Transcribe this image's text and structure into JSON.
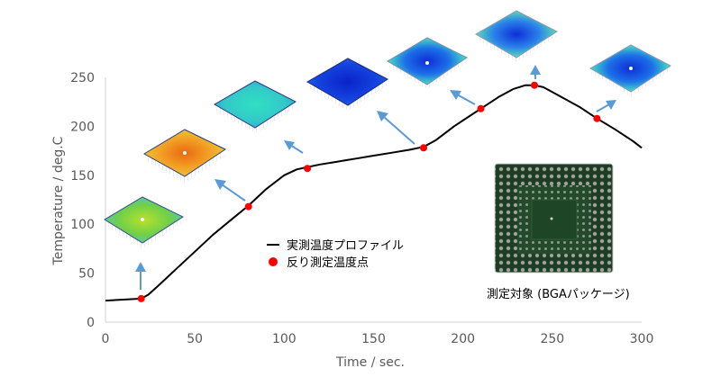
{
  "chart_data": {
    "type": "line",
    "xlabel": "Time / sec.",
    "ylabel": "Temperature / deg.C",
    "xlim": [
      0,
      300
    ],
    "ylim": [
      0,
      250
    ],
    "xticks": [
      0,
      50,
      100,
      150,
      200,
      250,
      300
    ],
    "yticks": [
      0,
      50,
      100,
      150,
      200,
      250
    ],
    "grid": false,
    "series": [
      {
        "name": "実測温度プロファイル",
        "color": "#000000",
        "x": [
          0,
          10,
          20,
          24,
          30,
          40,
          50,
          60,
          70,
          80,
          90,
          100,
          107,
          112,
          120,
          130,
          140,
          150,
          160,
          170,
          178,
          185,
          195,
          205,
          210,
          220,
          228,
          235,
          240,
          245,
          255,
          265,
          275,
          285,
          295,
          300
        ],
        "y": [
          22,
          23,
          24,
          28,
          38,
          55,
          72,
          89,
          104,
          119,
          136,
          150,
          156,
          158,
          161,
          164,
          167,
          170,
          173,
          176,
          179,
          186,
          200,
          212,
          218,
          230,
          238,
          242,
          242,
          240,
          230,
          220,
          208,
          197,
          185,
          178
        ]
      },
      {
        "name": "反り測定温度点",
        "color": "#ff0000",
        "x": [
          20,
          80,
          113,
          178,
          210,
          240,
          275
        ],
        "y": [
          24,
          118,
          157,
          178,
          218,
          242,
          208
        ]
      }
    ],
    "legend": [
      {
        "label": "実測温度プロファイル",
        "marker": "line",
        "color": "#000000"
      },
      {
        "label": "反り測定温度点",
        "marker": "dot",
        "color": "#ff0000"
      }
    ],
    "legend_placement": "center"
  },
  "package_caption": "測定対象 (BGAパッケージ)",
  "colors": {
    "axis": "#d0d0d0",
    "tick_text": "#595959",
    "arrow": "#5b9bd5"
  }
}
